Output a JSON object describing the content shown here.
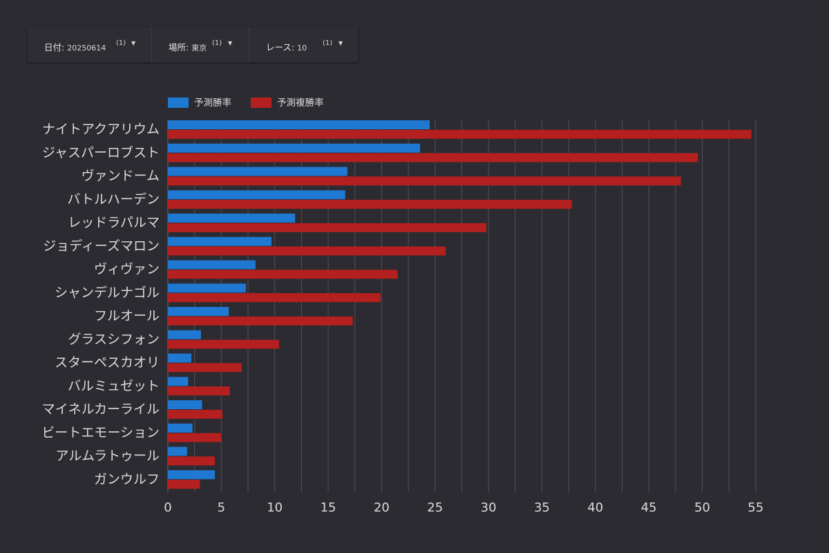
{
  "filters": [
    {
      "label": "日付",
      "value": "20250614",
      "count": "(1)"
    },
    {
      "label": "場所",
      "value": "東京",
      "count": "(1)"
    },
    {
      "label": "レース",
      "value": "10",
      "count": "(1)"
    }
  ],
  "colors": {
    "background": "#2c2b31",
    "win_series": "#1f78d1",
    "place_series": "#b3201f",
    "gridline": "#505057",
    "text": "#dcdcdc"
  },
  "chart_data": {
    "type": "bar",
    "orientation": "horizontal",
    "legend_position": "top-left",
    "grid": true,
    "xlim": [
      0,
      55
    ],
    "xticks": [
      0,
      5,
      10,
      15,
      20,
      25,
      30,
      35,
      40,
      45,
      50,
      55
    ],
    "categories": [
      "ナイトアクアリウム",
      "ジャスパーロブスト",
      "ヴァンドーム",
      "バトルハーデン",
      "レッドラパルマ",
      "ジョディーズマロン",
      "ヴィヴァン",
      "シャンデルナゴル",
      "フルオール",
      "グラスシフォン",
      "スターペスカオリ",
      "バルミュゼット",
      "マイネルカーライル",
      "ビートエモーション",
      "アルムラトゥール",
      "ガンウルフ"
    ],
    "series": [
      {
        "name": "予測勝率",
        "values": [
          24.5,
          23.6,
          16.8,
          16.6,
          11.9,
          9.7,
          8.2,
          7.3,
          5.7,
          3.1,
          2.2,
          1.9,
          3.2,
          2.3,
          1.8,
          4.4
        ]
      },
      {
        "name": "予測複勝率",
        "values": [
          54.6,
          49.6,
          48.0,
          37.8,
          29.8,
          26.0,
          21.5,
          19.9,
          17.3,
          10.4,
          6.9,
          5.8,
          5.1,
          5.0,
          4.4,
          3.0
        ]
      }
    ]
  }
}
